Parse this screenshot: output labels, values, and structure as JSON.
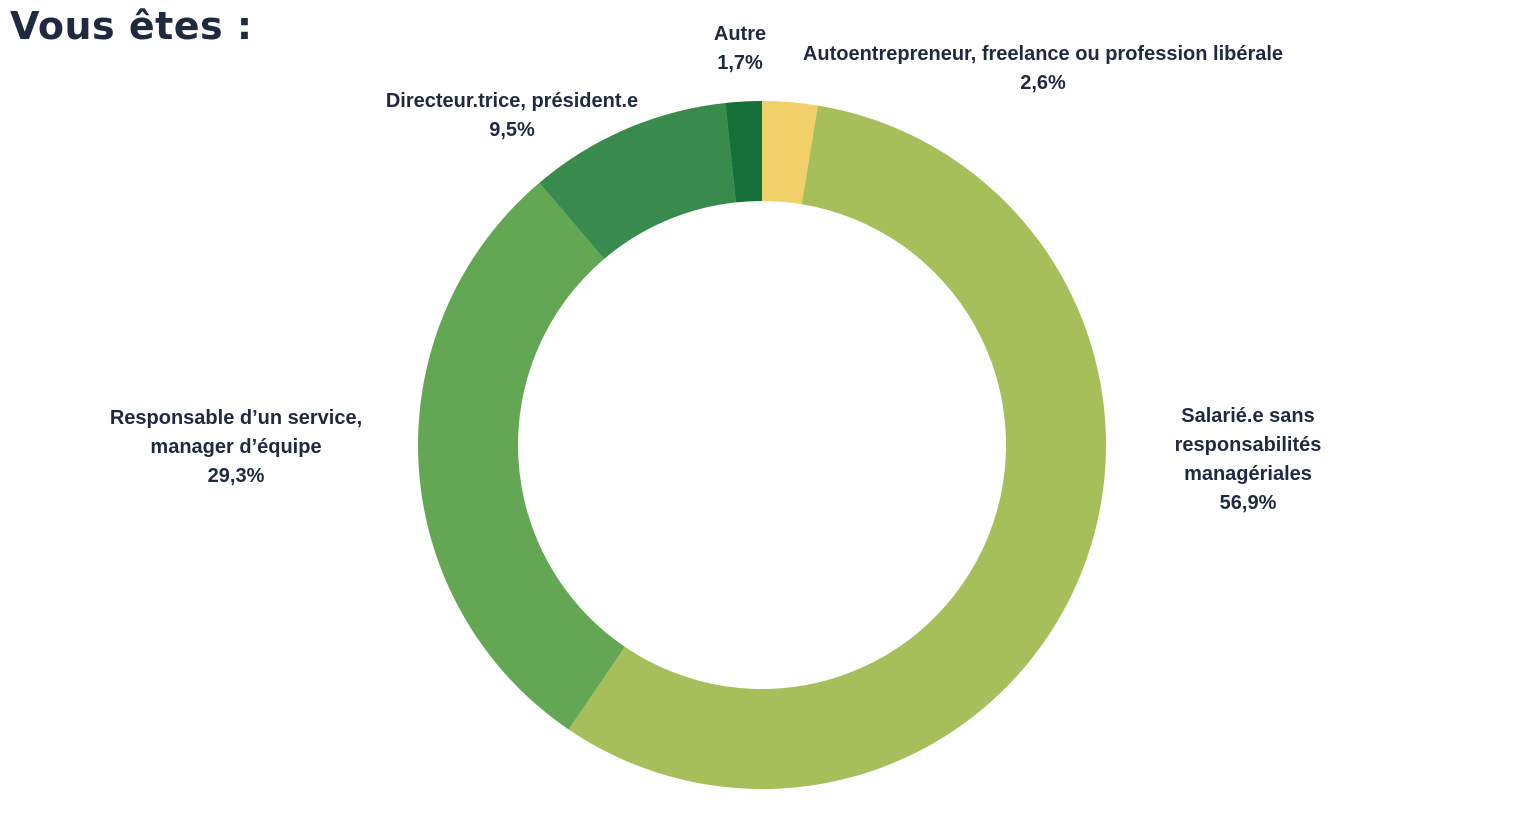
{
  "title": "Vous êtes :",
  "chart_data": {
    "type": "pie",
    "style": "donut",
    "start": "top, clockwise",
    "slices": [
      {
        "label": [
          "Autoentrepreneur, freelance ou profession libérale"
        ],
        "value_label": "2,6%",
        "value": 2.6,
        "color": "#f1cf69"
      },
      {
        "label": [
          "Salarié.e sans",
          "responsabilités",
          "managériales"
        ],
        "value_label": "56,9%",
        "value": 56.9,
        "color": "#a7bf5b"
      },
      {
        "label": [
          "Responsable d’un service,",
          "manager d’équipe"
        ],
        "value_label": "29,3%",
        "value": 29.3,
        "color": "#63a755"
      },
      {
        "label": [
          "Directeur.trice, président.e"
        ],
        "value_label": "9,5%",
        "value": 9.5,
        "color": "#398a4d"
      },
      {
        "label": [
          "Autre"
        ],
        "value_label": "1,7%",
        "value": 1.7,
        "color": "#16703a"
      }
    ]
  }
}
